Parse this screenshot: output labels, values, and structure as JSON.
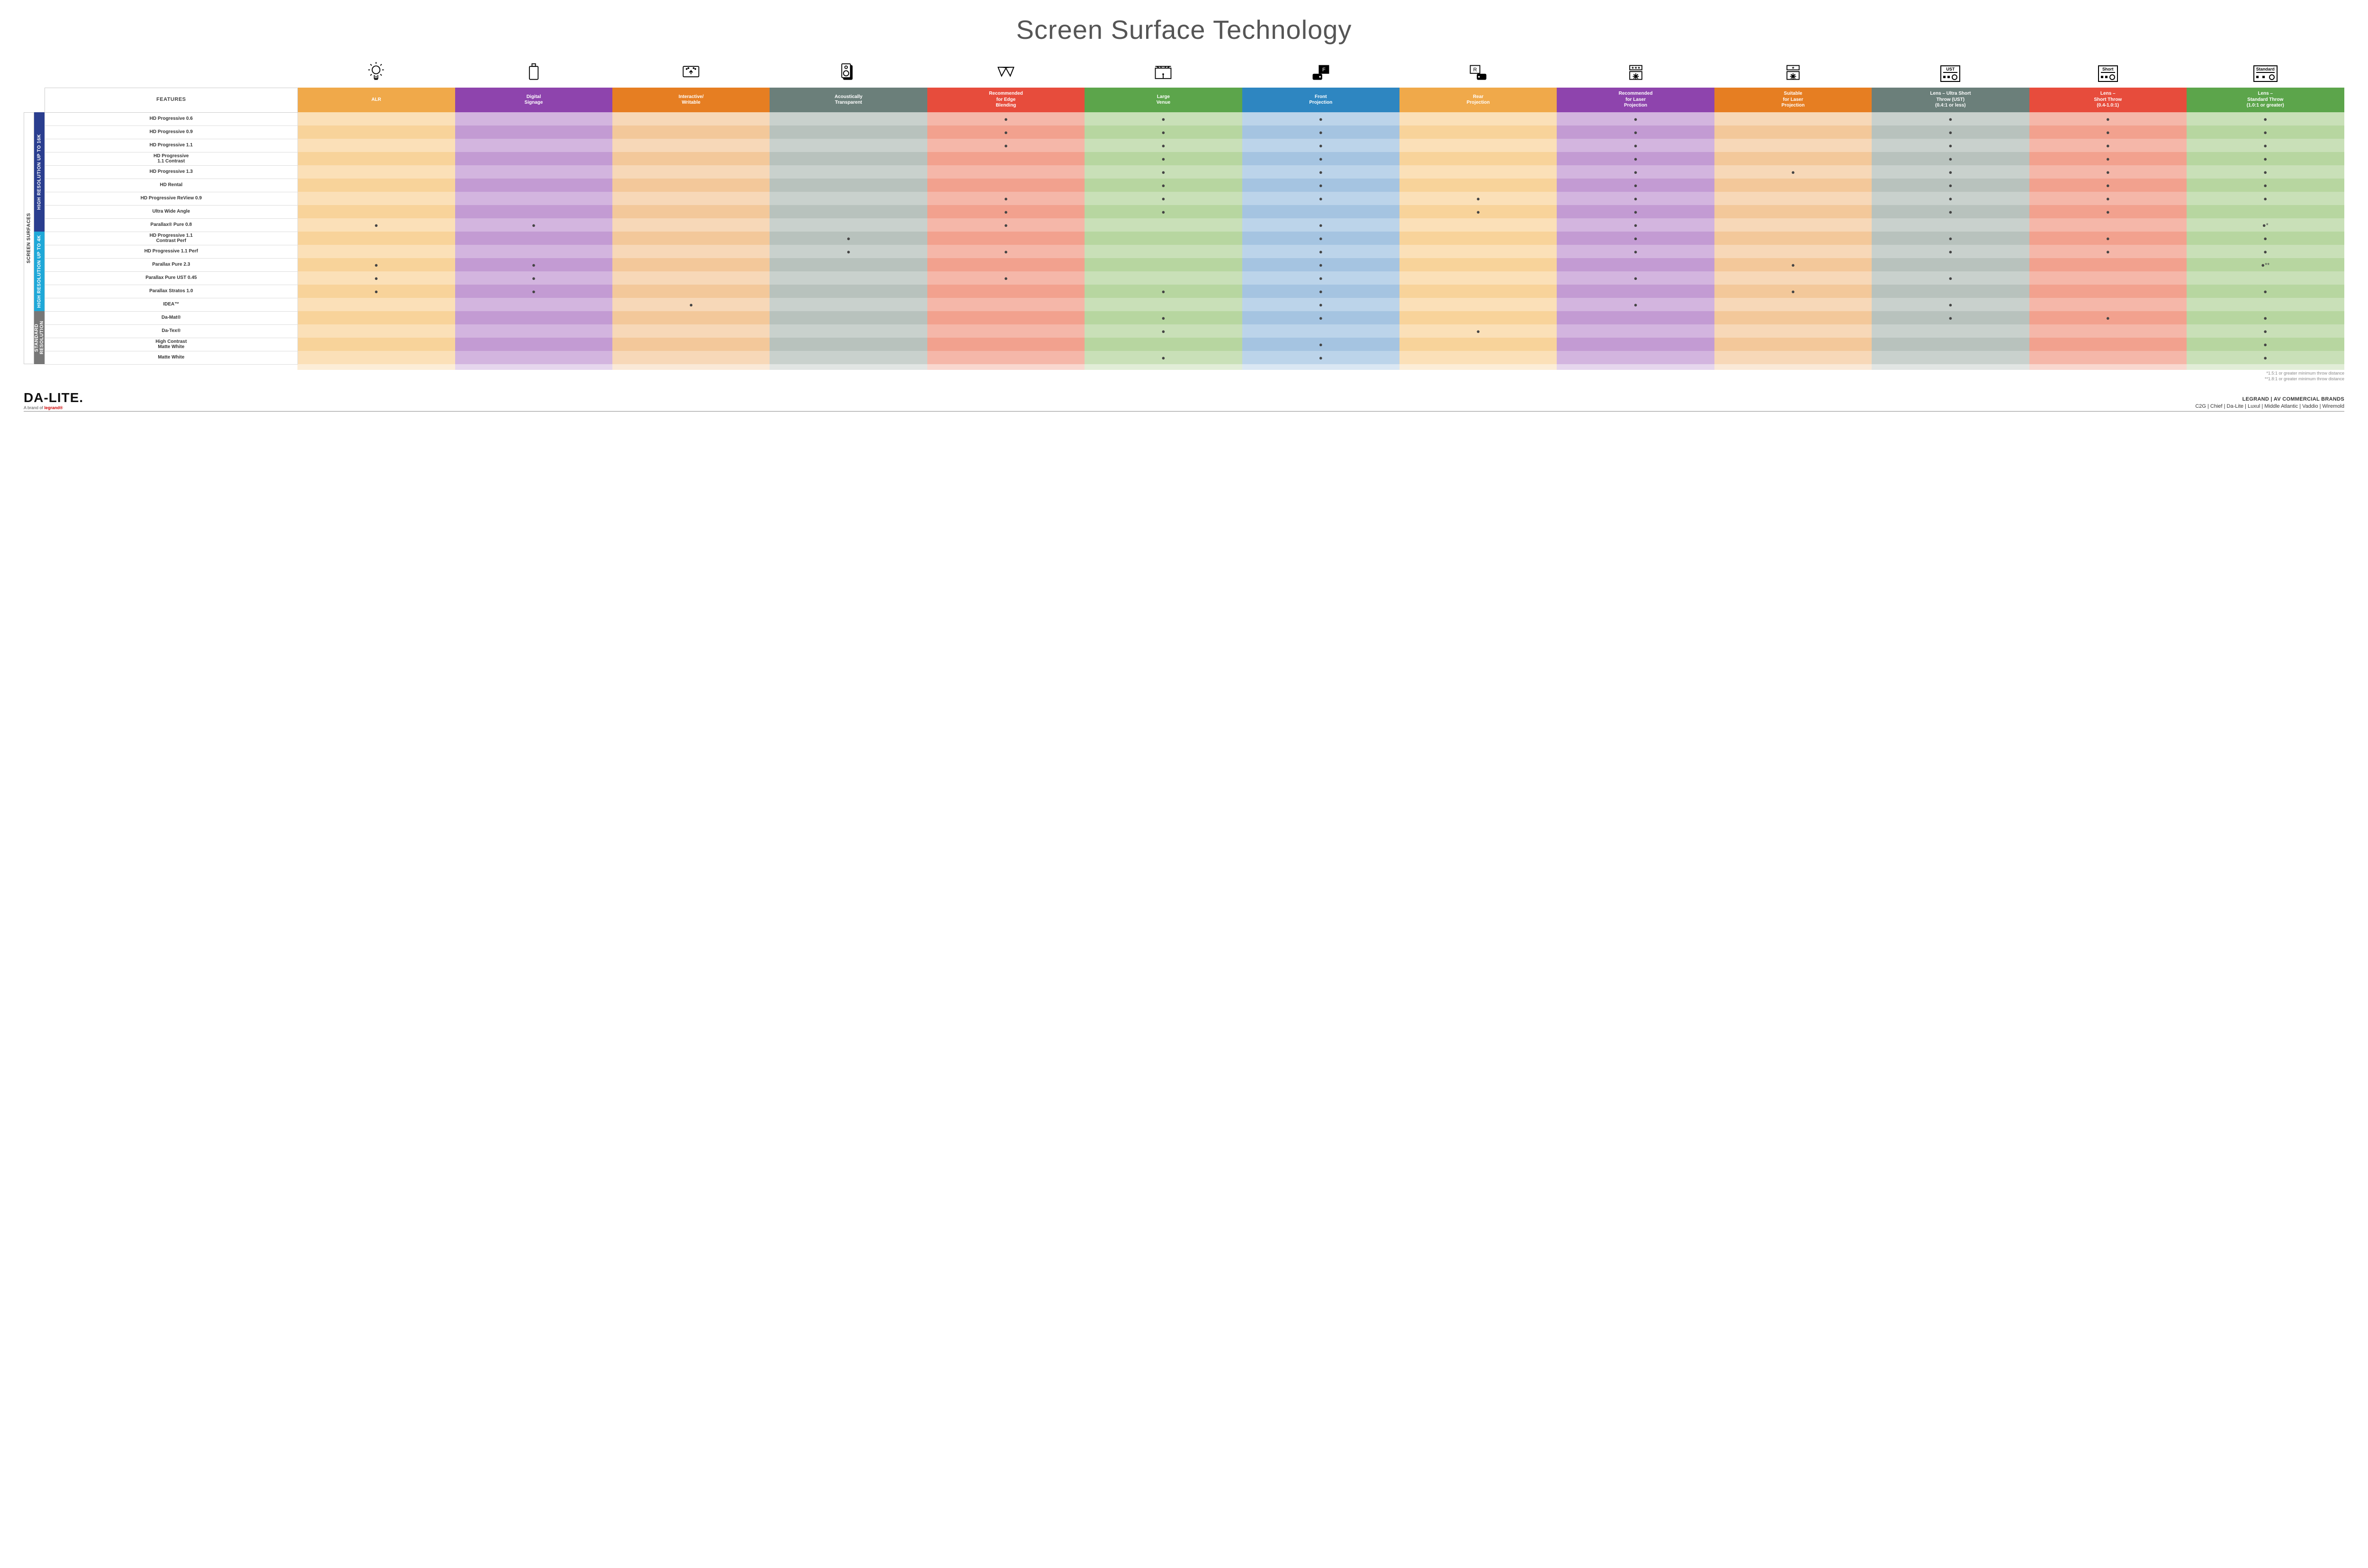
{
  "title": "Screen Surface Technology",
  "colors": {
    "alr_h": "#f0a94a",
    "alr_a": "#fbe0b8",
    "alr_b": "#f8d39a",
    "dsig_h": "#8e44ad",
    "dsig_a": "#d3b5df",
    "dsig_b": "#c39bd3",
    "int_h": "#e67e22",
    "int_a": "#f7d8b8",
    "int_b": "#f3c89a",
    "acou_h": "#6b7f7a",
    "acou_a": "#c9d1cd",
    "acou_b": "#b8c2bd",
    "edge_h": "#e74c3c",
    "edge_a": "#f5b7a9",
    "edge_b": "#f2a18e",
    "venue_h": "#5ca54b",
    "venue_a": "#c9e0b8",
    "venue_b": "#b7d6a0",
    "front_h": "#2e86c1",
    "front_a": "#bcd4ea",
    "front_b": "#a5c4e1",
    "rear_h": "#f0a94a",
    "rear_a": "#fbe0b8",
    "rear_b": "#f8d39a",
    "rlaser_h": "#8e44ad",
    "rlaser_a": "#d3b5df",
    "rlaser_b": "#c39bd3",
    "slaser_h": "#e67e22",
    "slaser_a": "#f7d8b8",
    "slaser_b": "#f3c89a",
    "ust_h": "#6b7f7a",
    "ust_a": "#c9d1cd",
    "ust_b": "#b8c2bd",
    "short_h": "#e74c3c",
    "short_a": "#f5b7a9",
    "short_b": "#f2a18e",
    "std_h": "#5ca54b",
    "std_a": "#c9e0b8",
    "std_b": "#b7d6a0"
  },
  "sideLabels": {
    "outer": "SCREEN SURFACES",
    "g16k": {
      "text": "HIGH RESOLUTION UP TO 16K",
      "bg": "#2a3e8f"
    },
    "g4k": {
      "text": "HIGH RESOLUTION UP TO 4K",
      "bg": "#1fa8d8"
    },
    "gstd": {
      "text": "STANDARD\nRESOLUTION",
      "bg": "#777777"
    }
  },
  "columns": [
    {
      "key": "features",
      "label": "FEATURES"
    },
    {
      "key": "alr",
      "label": "ALR"
    },
    {
      "key": "dsig",
      "label": "Digital\nSignage"
    },
    {
      "key": "int",
      "label": "Interactive/\nWritable"
    },
    {
      "key": "acou",
      "label": "Acoustically\nTransparent"
    },
    {
      "key": "edge",
      "label": "Recommended\nfor Edge\nBlending"
    },
    {
      "key": "venue",
      "label": "Large\nVenue"
    },
    {
      "key": "front",
      "label": "Front\nProjection"
    },
    {
      "key": "rear",
      "label": "Rear\nProjection"
    },
    {
      "key": "rlaser",
      "label": "Recommended\nfor Laser\nProjection"
    },
    {
      "key": "slaser",
      "label": "Suitable\nfor Laser\nProjection"
    },
    {
      "key": "ust",
      "label": "Lens – Ultra Short\nThrow (UST)\n(0.4:1 or less)"
    },
    {
      "key": "short",
      "label": "Lens –\nShort Throw\n(0.4-1.0:1)"
    },
    {
      "key": "std",
      "label": "Lens –\nStandard Throw\n(1.0:1 or greater)"
    }
  ],
  "groups": [
    {
      "key": "g16k",
      "rows": [
        {
          "label": "HD Progressive 0.6",
          "d": {
            "edge": "●",
            "venue": "●",
            "front": "●",
            "rlaser": "●",
            "ust": "●",
            "short": "●",
            "std": "●"
          }
        },
        {
          "label": "HD Progressive 0.9",
          "d": {
            "edge": "●",
            "venue": "●",
            "front": "●",
            "rlaser": "●",
            "ust": "●",
            "short": "●",
            "std": "●"
          }
        },
        {
          "label": "HD Progressive 1.1",
          "d": {
            "edge": "●",
            "venue": "●",
            "front": "●",
            "rlaser": "●",
            "ust": "●",
            "short": "●",
            "std": "●"
          }
        },
        {
          "label": "HD Progressive\n1.1 Contrast",
          "d": {
            "venue": "●",
            "front": "●",
            "rlaser": "●",
            "ust": "●",
            "short": "●",
            "std": "●"
          }
        },
        {
          "label": "HD Progressive 1.3",
          "d": {
            "venue": "●",
            "front": "●",
            "rlaser": "●",
            "slaser": "●",
            "ust": "●",
            "short": "●",
            "std": "●"
          }
        },
        {
          "label": "HD Rental",
          "d": {
            "venue": "●",
            "front": "●",
            "rlaser": "●",
            "ust": "●",
            "short": "●",
            "std": "●"
          }
        },
        {
          "label": "HD Progressive ReView 0.9",
          "d": {
            "edge": "●",
            "venue": "●",
            "front": "●",
            "rear": "●",
            "rlaser": "●",
            "ust": "●",
            "short": "●",
            "std": "●"
          }
        },
        {
          "label": "Ultra Wide Angle",
          "d": {
            "edge": "●",
            "venue": "●",
            "rear": "●",
            "rlaser": "●",
            "ust": "●",
            "short": "●"
          }
        },
        {
          "label": "Parallax® Pure 0.8",
          "d": {
            "alr": "●",
            "dsig": "●",
            "edge": "●",
            "front": "●",
            "rlaser": "●",
            "std": "●*"
          }
        }
      ]
    },
    {
      "key": "g4k",
      "rows": [
        {
          "label": "HD Progressive 1.1\nContrast Perf",
          "d": {
            "acou": "●",
            "front": "●",
            "rlaser": "●",
            "ust": "●",
            "short": "●",
            "std": "●"
          }
        },
        {
          "label": "HD Progressive 1.1 Perf",
          "d": {
            "acou": "●",
            "edge": "●",
            "front": "●",
            "rlaser": "●",
            "ust": "●",
            "short": "●",
            "std": "●"
          }
        },
        {
          "label": "Parallax Pure 2.3",
          "d": {
            "alr": "●",
            "dsig": "●",
            "front": "●",
            "slaser": "●",
            "std": "●**"
          }
        },
        {
          "label": "Parallax Pure UST 0.45",
          "d": {
            "alr": "●",
            "dsig": "●",
            "edge": "●",
            "front": "●",
            "rlaser": "●",
            "ust": "●"
          }
        },
        {
          "label": "Parallax Stratos 1.0",
          "d": {
            "alr": "●",
            "dsig": "●",
            "venue": "●",
            "front": "●",
            "slaser": "●",
            "std": "●"
          }
        },
        {
          "label": "IDEA™",
          "d": {
            "int": "●",
            "front": "●",
            "rlaser": "●",
            "ust": "●"
          }
        }
      ]
    },
    {
      "key": "gstd",
      "rows": [
        {
          "label": "Da-Mat®",
          "d": {
            "venue": "●",
            "front": "●",
            "ust": "●",
            "short": "●",
            "std": "●"
          }
        },
        {
          "label": "Da-Tex®",
          "d": {
            "venue": "●",
            "rear": "●",
            "std": "●"
          }
        },
        {
          "label": "High Contrast\nMatte White",
          "d": {
            "front": "●",
            "std": "●"
          }
        },
        {
          "label": "Matte White",
          "d": {
            "venue": "●",
            "front": "●",
            "std": "●"
          }
        }
      ]
    }
  ],
  "footnotes": [
    "*1.5:1 or greater minimum throw distance",
    "**1.8:1 or greater minimum throw distance"
  ],
  "footer": {
    "logo_main": "DA‑LITE.",
    "logo_sub_prefix": "A brand of ",
    "logo_sub_brand": "legrand®",
    "brands_top": "LEGRAND | AV COMMERCIAL BRANDS",
    "brands_list": "C2G  |  Chief  |  Da-Lite  |  Luxul  |  Middle Atlantic  |  Vaddio  |  Wiremold"
  },
  "proj_labels": {
    "ust": "UST",
    "short": "Short",
    "std": "Standard"
  }
}
